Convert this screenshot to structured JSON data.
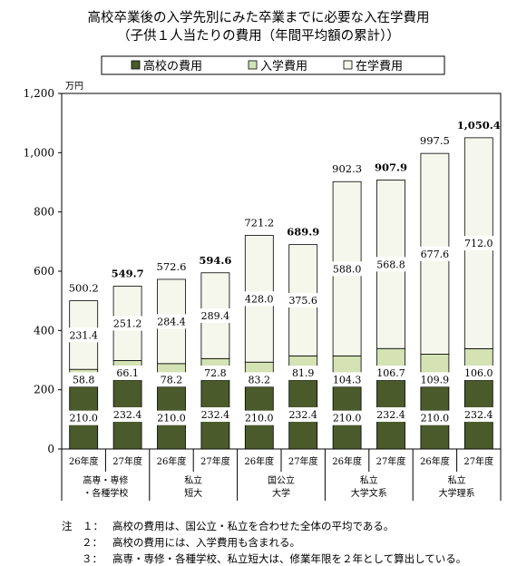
{
  "chart_data": {
    "type": "bar",
    "stacked": true,
    "title": "高校卒業後の入学先別にみた卒業までに必要な入在学費用",
    "subtitle": "（子供１人当たりの費用（年間平均額の累計））",
    "yunit": "万円",
    "ylim": [
      0,
      1200
    ],
    "yticks": [
      "0",
      "200",
      "400",
      "600",
      "800",
      "1,000",
      "1,200"
    ],
    "legend_position": "top",
    "grid": false,
    "year_labels": [
      "26年度",
      "27年度"
    ],
    "groups": [
      {
        "label_lines": [
          "高専・専修",
          "・各種学校"
        ]
      },
      {
        "label_lines": [
          "私立",
          "短大"
        ]
      },
      {
        "label_lines": [
          "国公立",
          "大学"
        ]
      },
      {
        "label_lines": [
          "私立",
          "大学文系"
        ]
      },
      {
        "label_lines": [
          "私立",
          "大学理系"
        ]
      }
    ],
    "series": [
      {
        "name": "高校の費用",
        "color": "#4a5a2a",
        "values": [
          210.0,
          232.4,
          210.0,
          232.4,
          210.0,
          232.4,
          210.0,
          232.4,
          210.0,
          232.4
        ],
        "labels": [
          "210.0",
          "232.4",
          "210.0",
          "232.4",
          "210.0",
          "232.4",
          "210.0",
          "232.4",
          "210.0",
          "232.4"
        ]
      },
      {
        "name": "入学費用",
        "color": "#d4e2b4",
        "values": [
          58.8,
          66.1,
          78.2,
          72.8,
          83.2,
          81.9,
          104.3,
          106.7,
          109.9,
          106.0
        ],
        "labels": [
          "58.8",
          "66.1",
          "78.2",
          "72.8",
          "83.2",
          "81.9",
          "104.3",
          "106.7",
          "109.9",
          "106.0"
        ]
      },
      {
        "name": "在学費用",
        "color": "#f6f7ec",
        "values": [
          231.4,
          251.2,
          284.4,
          289.4,
          428.0,
          375.6,
          588.0,
          568.8,
          677.6,
          712.0
        ],
        "labels": [
          "231.4",
          "251.2",
          "284.4",
          "289.4",
          "428.0",
          "375.6",
          "588.0",
          "568.8",
          "677.6",
          "712.0"
        ]
      }
    ],
    "totals": [
      "500.2",
      "549.7",
      "572.6",
      "594.6",
      "721.2",
      "689.9",
      "902.3",
      "907.9",
      "997.5",
      "1,050.4"
    ],
    "totals_bold": [
      false,
      true,
      false,
      true,
      false,
      true,
      false,
      true,
      false,
      true
    ]
  },
  "notes": [
    {
      "label": "注　１：",
      "text": "高校の費用は、国公立・私立を合わせた全体の平均である。"
    },
    {
      "label": "２：",
      "text": "高校の費用には、入学費用も含まれる。"
    },
    {
      "label": "３：",
      "text": "高専・専修・各種学校、私立短大は、修業年限を２年として算出している。"
    }
  ]
}
